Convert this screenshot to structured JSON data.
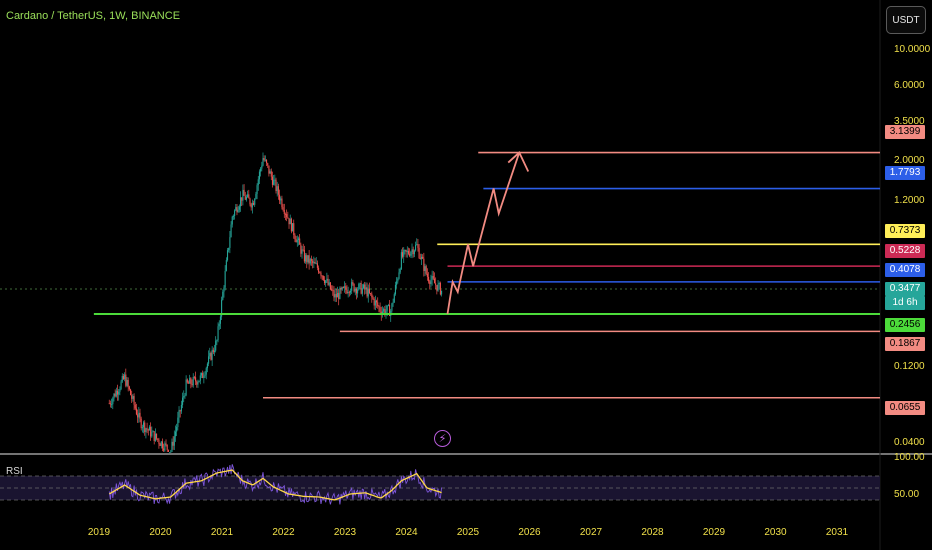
{
  "header": {
    "title": "Cardano / TetherUS, 1W, BINANCE",
    "currency_button": "USDT"
  },
  "indicator": {
    "name": "RSI"
  },
  "colors": {
    "background": "#000000",
    "up_candle": "#26a69a",
    "down_candle": "#ef5350",
    "support_green": "#4cdb3a",
    "projection": "#f28b82",
    "blue": "#2c5ee8",
    "yellow": "#ffee58",
    "crimson": "#cc2a55",
    "rsi_line": "#ffd84a",
    "rsi_wave": "#7c55d8"
  },
  "chart_data": [
    {
      "type": "line",
      "title": "Cardano / TetherUS, 1W, BINANCE",
      "y_scale": "log",
      "x": [
        "2019-03",
        "2019-06",
        "2019-09",
        "2019-12",
        "2020-03",
        "2020-06",
        "2020-09",
        "2020-12",
        "2021-03",
        "2021-05",
        "2021-07",
        "2021-09",
        "2021-11",
        "2022-02",
        "2022-05",
        "2022-08",
        "2022-11",
        "2023-02",
        "2023-05",
        "2023-08",
        "2023-10",
        "2023-12",
        "2024-03",
        "2024-05",
        "2024-08"
      ],
      "series": [
        {
          "values": [
            0.06,
            0.09,
            0.045,
            0.035,
            0.028,
            0.08,
            0.09,
            0.16,
            1.15,
            1.6,
            1.4,
            2.9,
            2.0,
            1.1,
            0.6,
            0.5,
            0.32,
            0.38,
            0.36,
            0.26,
            0.26,
            0.6,
            0.72,
            0.45,
            0.35
          ]
        }
      ],
      "projection": {
        "path": [
          [
            "2024-09",
            0.2456
          ],
          [
            "2024-10",
            0.4078
          ],
          [
            "2024-11",
            0.3477
          ],
          [
            "2025-01",
            0.7373
          ],
          [
            "2025-02",
            0.5228
          ],
          [
            "2025-06",
            1.7793
          ],
          [
            "2025-07",
            1.2
          ],
          [
            "2025-11",
            3.1399
          ]
        ]
      },
      "horizontal_levels": [
        {
          "value": 3.1399,
          "color": "#f28b82",
          "start": "2025-03"
        },
        {
          "value": 1.7793,
          "color": "#2c5ee8",
          "start": "2025-04"
        },
        {
          "value": 0.7373,
          "color": "#ffee58",
          "start": "2024-07"
        },
        {
          "value": 0.5228,
          "color": "#cc2a55",
          "start": "2024-09"
        },
        {
          "value": 0.4078,
          "color": "#2c5ee8",
          "start": "2024-09"
        },
        {
          "value": 0.2456,
          "color": "#4cdb3a",
          "start": "2018-12"
        },
        {
          "value": 0.1867,
          "color": "#f28b82",
          "start": "2022-12"
        },
        {
          "value": 0.0655,
          "color": "#f28b82",
          "start": "2021-09"
        }
      ],
      "current_price": 0.3477,
      "countdown": "1d 6h",
      "y_ticks": [
        "10.0000",
        "6.0000",
        "3.5000",
        "2.0000",
        "1.2000",
        "0.1200",
        "0.0400"
      ],
      "x_ticks": [
        "2019",
        "2020",
        "2021",
        "2022",
        "2023",
        "2024",
        "2025",
        "2026",
        "2027",
        "2028",
        "2029",
        "2030",
        "2031"
      ],
      "price_tags": [
        {
          "label": "3.1399",
          "bg": "#f28b82",
          "fg": "#000000"
        },
        {
          "label": "1.7793",
          "bg": "#2c5ee8",
          "fg": "#ffffff"
        },
        {
          "label": "0.7373",
          "bg": "#ffee58",
          "fg": "#000000"
        },
        {
          "label": "0.5228",
          "bg": "#cc2a55",
          "fg": "#ffffff"
        },
        {
          "label": "0.4078",
          "bg": "#2c5ee8",
          "fg": "#ffffff"
        },
        {
          "label": "0.3477",
          "bg": "#26a69a",
          "fg": "#ffffff"
        },
        {
          "label": "1d 6h",
          "bg": "#26a69a",
          "fg": "#ffffff"
        },
        {
          "label": "0.2456",
          "bg": "#4cdb3a",
          "fg": "#000000"
        },
        {
          "label": "0.1867",
          "bg": "#f28b82",
          "fg": "#000000"
        },
        {
          "label": "0.0655",
          "bg": "#f28b82",
          "fg": "#000000"
        }
      ]
    },
    {
      "type": "line",
      "title": "RSI",
      "ylim": [
        0,
        100
      ],
      "y_ticks": [
        "100.00",
        "50.00"
      ],
      "bands": [
        30,
        50,
        70
      ],
      "series": [
        {
          "name": "RSI",
          "values": [
            40,
            55,
            38,
            32,
            35,
            58,
            62,
            75,
            80,
            62,
            55,
            66,
            52,
            40,
            36,
            35,
            30,
            40,
            42,
            33,
            45,
            62,
            74,
            50,
            42
          ]
        }
      ]
    }
  ]
}
